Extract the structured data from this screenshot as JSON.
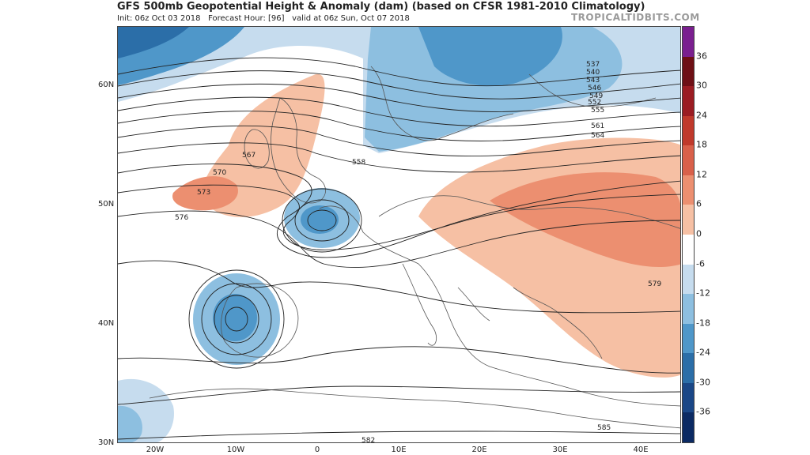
{
  "header": {
    "title": "GFS 500mb Geopotential Height & Anomaly (dam) (based on CFSR 1981-2010 Climatology)",
    "init": "Init: 06z Oct 03 2018",
    "forecast_hour": "Forecast Hour: [96]",
    "valid": "valid at 06z Sun, Oct 07 2018",
    "brand": "TROPICALTIDBITS.COM"
  },
  "axes": {
    "lat_labels": [
      "60N",
      "50N",
      "40N",
      "30N"
    ],
    "lon_labels": [
      "20W",
      "10W",
      "0",
      "10E",
      "20E",
      "30E",
      "40E"
    ]
  },
  "colorbar": {
    "ticks": [
      "36",
      "30",
      "24",
      "18",
      "12",
      "6",
      "0",
      "-6",
      "-12",
      "-18",
      "-24",
      "-30",
      "-36"
    ],
    "colors": [
      "#7a1f8f",
      "#6e0f15",
      "#9b1c22",
      "#c0392b",
      "#d9604a",
      "#ec8f70",
      "#f6c0a4",
      "#ffffff",
      "#c6dcee",
      "#8dbfe0",
      "#4f97c9",
      "#2b6ea8",
      "#1a4787",
      "#0b2a63"
    ]
  },
  "contours": {
    "labels": [
      "537",
      "540",
      "543",
      "546",
      "549",
      "552",
      "555",
      "558",
      "561",
      "564",
      "567",
      "570",
      "573",
      "576",
      "579",
      "582",
      "585"
    ]
  }
}
